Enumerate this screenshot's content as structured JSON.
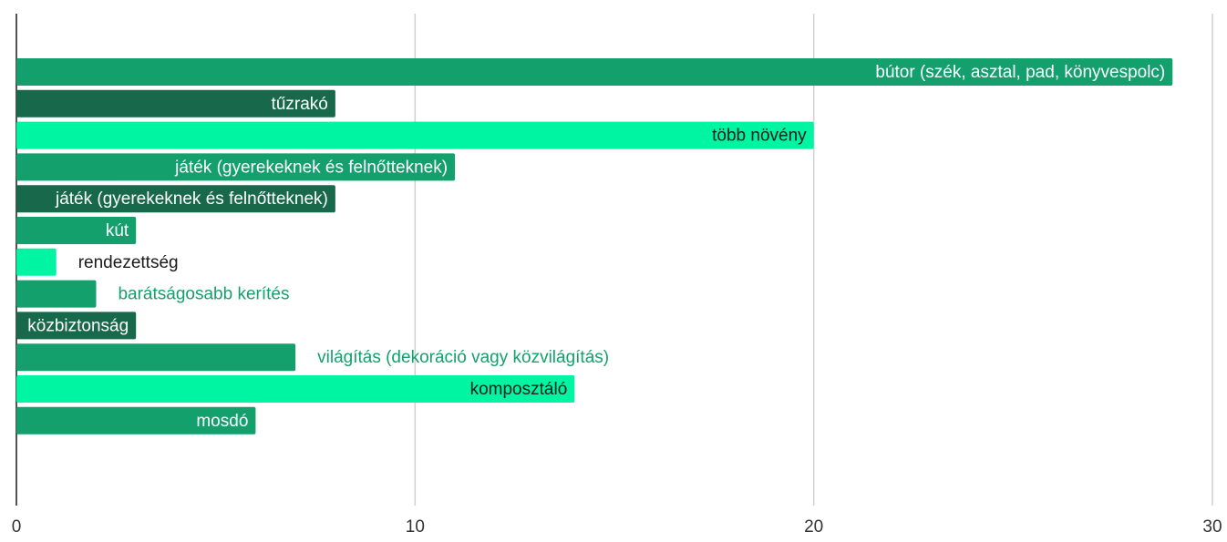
{
  "chart_data": {
    "type": "bar",
    "orientation": "horizontal",
    "categories": [
      "bútor (szék, asztal, pad, könyvespolc)",
      "tűzrakó",
      "több növény",
      "játék (gyerekeknek és felnőtteknek)",
      "játék (gyerekeknek és felnőtteknek)",
      "kút",
      "rendezettség",
      "barátságosabb kerítés",
      "közbiztonság",
      "világítás (dekoráció vagy közvilágítás)",
      "komposztáló",
      "mosdó"
    ],
    "values": [
      29,
      8,
      20,
      11,
      8,
      3,
      1,
      2,
      3,
      7,
      14,
      6
    ],
    "colors": [
      "#14a06c",
      "#18694c",
      "#00f5a3",
      "#14a06c",
      "#18694c",
      "#14a06c",
      "#00f5a3",
      "#14a06c",
      "#18694c",
      "#14a06c",
      "#00f5a3",
      "#14a06c"
    ],
    "xlim": [
      0,
      30
    ],
    "xticks": [
      0,
      10,
      20,
      30
    ],
    "grid": true
  }
}
